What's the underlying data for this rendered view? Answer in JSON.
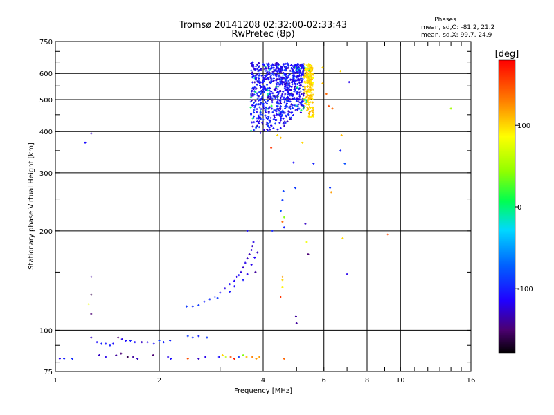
{
  "header": {
    "title": "Tromsø 20141208 02:32:00-02:33:43",
    "subtitle": "RwPretec (8p)",
    "phases_label": "Phases",
    "stats_o": "mean, sd,O: -81.2, 21.2",
    "stats_x": "mean, sd,X:  99.7, 24.9"
  },
  "chart_data": {
    "type": "scatter",
    "xlabel": "Frequency [MHz]",
    "ylabel": "Stationary phase Virtual Height [km]",
    "x_scale": "log",
    "y_scale": "log",
    "xlim": [
      1,
      16
    ],
    "ylim": [
      75,
      750
    ],
    "x_ticks": [
      1,
      2,
      4,
      6,
      8,
      10,
      16
    ],
    "x_tick_labels": [
      "1",
      "2",
      "4",
      "6",
      "8",
      "10",
      "16"
    ],
    "y_ticks": [
      75,
      100,
      200,
      300,
      400,
      500,
      600,
      750
    ],
    "y_tick_labels": [
      "75",
      "100",
      "200",
      "300",
      "400",
      "500",
      "600",
      "750"
    ],
    "grid": true,
    "colorbar": {
      "label": "[deg]",
      "range": [
        -180,
        180
      ],
      "ticks": [
        100,
        0,
        -100
      ],
      "tick_labels": [
        "100",
        "0",
        "-100"
      ],
      "colormap": "rainbow"
    },
    "points": [
      [
        1.03,
        82,
        -120
      ],
      [
        1.06,
        82,
        -100
      ],
      [
        1.12,
        82,
        -95
      ],
      [
        1.22,
        370,
        -110
      ],
      [
        1.27,
        395,
        -130
      ],
      [
        1.25,
        120,
        80
      ],
      [
        1.27,
        145,
        -140
      ],
      [
        1.27,
        128,
        -160
      ],
      [
        1.27,
        112,
        -150
      ],
      [
        1.27,
        95,
        -130
      ],
      [
        1.32,
        92,
        -110
      ],
      [
        1.36,
        91,
        -100
      ],
      [
        1.4,
        91,
        -105
      ],
      [
        1.44,
        90,
        -100
      ],
      [
        1.47,
        91,
        -110
      ],
      [
        1.52,
        95,
        -150
      ],
      [
        1.56,
        94,
        -120
      ],
      [
        1.6,
        93,
        -110
      ],
      [
        1.65,
        93,
        -100
      ],
      [
        1.7,
        92,
        -110
      ],
      [
        1.78,
        92,
        -130
      ],
      [
        1.85,
        92,
        -120
      ],
      [
        1.93,
        91,
        -110
      ],
      [
        2.0,
        93,
        -90
      ],
      [
        2.06,
        92,
        -100
      ],
      [
        2.15,
        93,
        -100
      ],
      [
        2.42,
        96,
        -90
      ],
      [
        2.5,
        95,
        -95
      ],
      [
        2.6,
        96,
        -100
      ],
      [
        2.75,
        95,
        -90
      ],
      [
        1.34,
        84,
        -130
      ],
      [
        1.4,
        83,
        -120
      ],
      [
        1.5,
        84,
        -140
      ],
      [
        1.55,
        85,
        -150
      ],
      [
        1.62,
        83,
        -160
      ],
      [
        1.68,
        83,
        -140
      ],
      [
        1.73,
        82,
        -130
      ],
      [
        1.92,
        84,
        -150
      ],
      [
        2.12,
        83,
        -120
      ],
      [
        2.16,
        82,
        -110
      ],
      [
        2.42,
        82,
        150
      ],
      [
        2.6,
        82,
        -130
      ],
      [
        2.72,
        83,
        -120
      ],
      [
        2.98,
        83,
        -110
      ],
      [
        3.05,
        84,
        100
      ],
      [
        3.12,
        83,
        60
      ],
      [
        3.22,
        83,
        150
      ],
      [
        3.3,
        82,
        170
      ],
      [
        3.4,
        83,
        -90
      ],
      [
        3.58,
        83,
        110
      ],
      [
        3.72,
        83,
        130
      ],
      [
        3.82,
        82,
        120
      ],
      [
        3.9,
        83,
        120
      ],
      [
        4.6,
        82,
        140
      ],
      [
        3.5,
        84,
        40
      ],
      [
        2.4,
        118,
        -90
      ],
      [
        2.5,
        118,
        -95
      ],
      [
        2.6,
        119,
        -90
      ],
      [
        2.7,
        122,
        -100
      ],
      [
        2.8,
        124,
        -95
      ],
      [
        2.9,
        126,
        -100
      ],
      [
        3.0,
        130,
        -110
      ],
      [
        3.1,
        134,
        -120
      ],
      [
        3.2,
        138,
        -110
      ],
      [
        3.3,
        141,
        -115
      ],
      [
        3.35,
        145,
        -120
      ],
      [
        3.45,
        150,
        -125
      ],
      [
        3.5,
        155,
        -130
      ],
      [
        3.55,
        160,
        -120
      ],
      [
        3.6,
        165,
        -130
      ],
      [
        3.65,
        170,
        -135
      ],
      [
        3.7,
        175,
        -125
      ],
      [
        3.72,
        180,
        -130
      ],
      [
        3.75,
        185,
        -120
      ],
      [
        3.6,
        200,
        -110
      ],
      [
        3.8,
        150,
        -140
      ],
      [
        3.7,
        158,
        -120
      ],
      [
        3.4,
        147,
        -110
      ],
      [
        3.2,
        131,
        -105
      ],
      [
        2.95,
        125,
        -90
      ],
      [
        3.85,
        172,
        -130
      ],
      [
        3.78,
        166,
        -115
      ],
      [
        3.6,
        148,
        -120
      ],
      [
        3.5,
        142,
        -105
      ],
      [
        3.3,
        136,
        -110
      ],
      [
        4.25,
        200,
        -100
      ],
      [
        4.6,
        205,
        -100
      ],
      [
        4.55,
        213,
        140
      ],
      [
        4.6,
        220,
        40
      ],
      [
        4.5,
        230,
        -80
      ],
      [
        4.55,
        248,
        -90
      ],
      [
        4.58,
        264,
        -85
      ],
      [
        4.96,
        270,
        -90
      ],
      [
        4.55,
        145,
        120
      ],
      [
        4.55,
        135,
        90
      ],
      [
        4.5,
        126,
        160
      ],
      [
        4.55,
        142,
        100
      ],
      [
        4.98,
        110,
        -140
      ],
      [
        5.0,
        105,
        -140
      ],
      [
        5.3,
        210,
        -130
      ],
      [
        5.35,
        185,
        80
      ],
      [
        5.4,
        170,
        -150
      ],
      [
        5.6,
        320,
        -100
      ],
      [
        6.25,
        270,
        -90
      ],
      [
        6.3,
        262,
        120
      ],
      [
        6.7,
        350,
        -100
      ],
      [
        6.75,
        390,
        110
      ],
      [
        6.9,
        320,
        -80
      ],
      [
        7.0,
        148,
        -120
      ],
      [
        6.8,
        190,
        100
      ],
      [
        9.2,
        195,
        150
      ],
      [
        14.0,
        470,
        50
      ],
      [
        6.35,
        470,
        140
      ],
      [
        6.2,
        478,
        150
      ],
      [
        7.1,
        565,
        -120
      ],
      [
        6.7,
        610,
        100
      ],
      [
        6.1,
        520,
        140
      ],
      [
        5.95,
        560,
        110
      ],
      [
        5.95,
        625,
        100
      ],
      [
        5.2,
        370,
        100
      ],
      [
        4.9,
        322,
        -110
      ],
      [
        4.4,
        390,
        100
      ],
      [
        4.5,
        383,
        110
      ],
      [
        4.22,
        357,
        160
      ]
    ],
    "cluster_f": {
      "description_hint": "dense F-region trace",
      "x_range": [
        3.68,
        5.55
      ],
      "y_range": [
        385,
        650
      ],
      "phase_main": -110,
      "phase_tail": 100
    }
  }
}
